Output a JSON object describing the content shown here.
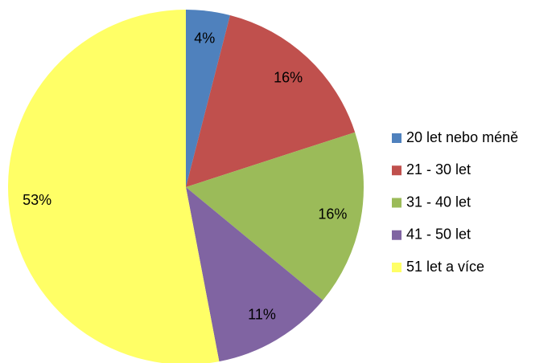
{
  "chart_data": {
    "type": "pie",
    "categories": [
      "20 let nebo méně",
      "21 - 30 let",
      "31 - 40 let",
      "41 - 50 let",
      "51 let a více"
    ],
    "values": [
      4,
      16,
      16,
      11,
      53
    ],
    "value_labels": [
      "4%",
      "16%",
      "16%",
      "11%",
      "53%"
    ],
    "colors": [
      "#4f81bd",
      "#c0504d",
      "#9bbb59",
      "#8064a2",
      "#ffff66"
    ],
    "legend": "right"
  }
}
